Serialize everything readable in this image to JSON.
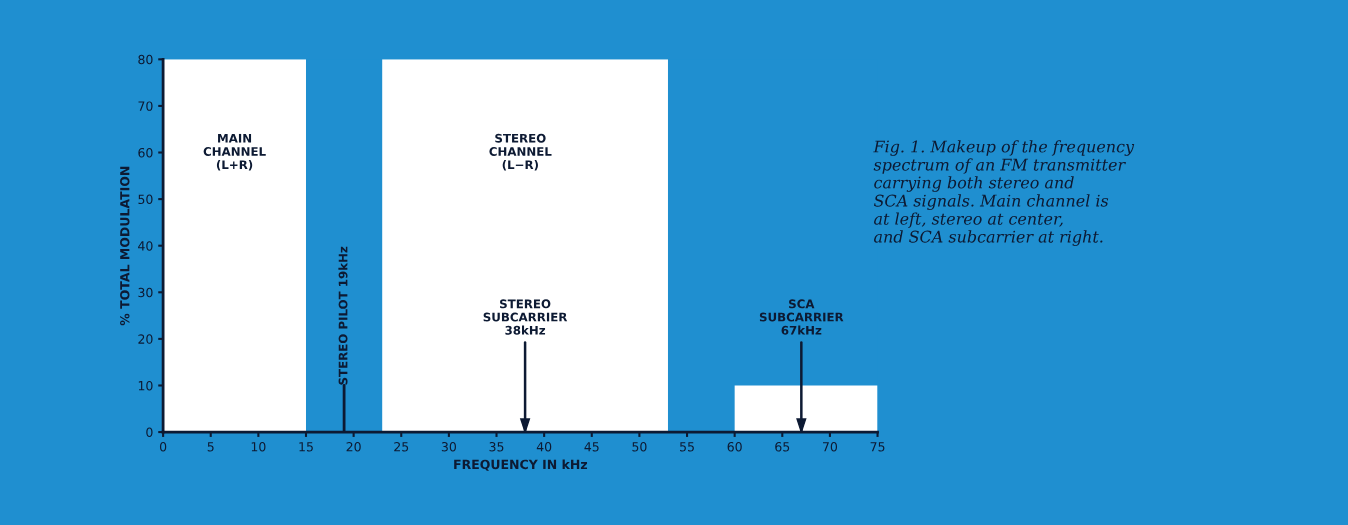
{
  "chart_data": {
    "type": "histogram",
    "xlabel": "FREQUENCY IN kHz",
    "ylabel": "% TOTAL MODULATION",
    "bins": [
      0,
      15,
      23,
      53,
      60,
      75
    ],
    "values": [
      80,
      0,
      80,
      0,
      10
    ],
    "color": "#ffffff",
    "xlim": [
      0,
      75
    ],
    "ylim": [
      0,
      80
    ],
    "xticks": [
      0,
      5,
      10,
      15,
      20,
      25,
      30,
      35,
      40,
      45,
      50,
      55,
      60,
      65,
      70,
      75
    ],
    "yticks": [
      0,
      10,
      20,
      30,
      40,
      50,
      60,
      70,
      80
    ],
    "grid": false,
    "ref_lines": [
      {
        "axis": "x",
        "value": 19,
        "label": "STEREO PILOT 19kHz"
      },
      {
        "axis": "x",
        "value": 38,
        "label": "STEREO\nSUBCARRIER\n38kHz"
      },
      {
        "axis": "x",
        "value": 67,
        "label": "SCA\nSUBCARRIER\n67kHz"
      }
    ],
    "annotations": [
      "MAIN\nCHANNEL\n(L+R)",
      "STEREO\nCHANNEL\n(L−R)",
      "Fig. 1. Makeup of the frequency\nspectrum of an FM transmitter\ncarrying both stereo and\nSCA signals. Main channel is\nat left, stereo at center,\nand SCA subcarrier at right."
    ]
  }
}
